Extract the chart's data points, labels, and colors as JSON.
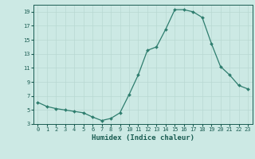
{
  "x": [
    0,
    1,
    2,
    3,
    4,
    5,
    6,
    7,
    8,
    9,
    10,
    11,
    12,
    13,
    14,
    15,
    16,
    17,
    18,
    19,
    20,
    21,
    22,
    23
  ],
  "y": [
    6.1,
    5.5,
    5.2,
    5.0,
    4.8,
    4.6,
    4.0,
    3.5,
    3.8,
    4.6,
    7.2,
    10.0,
    13.5,
    14.0,
    16.5,
    19.3,
    19.3,
    19.0,
    18.2,
    14.5,
    11.2,
    10.0,
    8.5,
    8.0
  ],
  "xlabel": "Humidex (Indice chaleur)",
  "line_color": "#2e7d6e",
  "bg_color": "#cce9e4",
  "grid_color": "#b8d8d2",
  "text_color": "#1a5c52",
  "ylim": [
    3,
    20
  ],
  "yticks": [
    3,
    5,
    7,
    9,
    11,
    13,
    15,
    17,
    19
  ],
  "xticks": [
    0,
    1,
    2,
    3,
    4,
    5,
    6,
    7,
    8,
    9,
    10,
    11,
    12,
    13,
    14,
    15,
    16,
    17,
    18,
    19,
    20,
    21,
    22,
    23
  ],
  "tick_fontsize": 5.0,
  "xlabel_fontsize": 6.5
}
